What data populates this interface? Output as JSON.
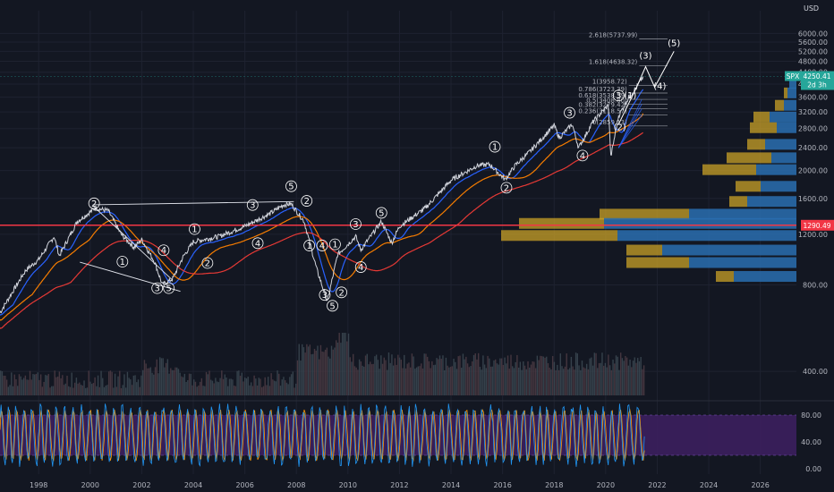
{
  "colors": {
    "background": "#131722",
    "price": "#d1d4dc",
    "ma_blue": "#2962ff",
    "ma_orange": "#f57c00",
    "ma_red": "#e53935",
    "support_line": "#f23645",
    "stoch_k": "#2196f3",
    "stoch_d": "#ff9800",
    "stoch_band": "#3c1f5e",
    "vp_up": "#2a6fb0",
    "vp_down": "#c9a227",
    "volume": "#5d4950",
    "wave_line": "#e0e3eb"
  },
  "header": {
    "currency": "USD"
  },
  "tags": {
    "symbol": "SPX",
    "last_price": "4250.41",
    "countdown": "2d 3h",
    "level_label": "1290.49"
  },
  "chart_data": {
    "type": "line",
    "title": "",
    "yscale": "log",
    "ylim": [
      330,
      7200
    ],
    "y_ticks": [
      "6000.00",
      "5600.00",
      "5200.00",
      "4800.00",
      "4400.00",
      "4000.00",
      "3600.00",
      "3200.00",
      "2800.00",
      "2400.00",
      "2000.00",
      "1600.00",
      "1200.00",
      "800.00",
      "400.00"
    ],
    "y_tick_values": [
      6000,
      5600,
      5200,
      4800,
      4400,
      4000,
      3600,
      3200,
      2800,
      2400,
      2000,
      1600,
      1200,
      800,
      400
    ],
    "x_ticks": [
      "1998",
      "2000",
      "2002",
      "2004",
      "2006",
      "2008",
      "2010",
      "2012",
      "2014",
      "2016",
      "2018",
      "2020",
      "2022",
      "2024",
      "2026"
    ],
    "x_tick_values": [
      1998,
      2000,
      2002,
      2004,
      2006,
      2008,
      2010,
      2012,
      2014,
      2016,
      2018,
      2020,
      2022,
      2024,
      2026
    ],
    "xlim": [
      1996.5,
      2027.4
    ],
    "series": [
      {
        "x": [
          1996.5,
          1997.0,
          1997.5,
          1998.0,
          1998.6,
          1998.8,
          1999.5,
          2000.2,
          2000.7,
          2001.2,
          2001.7,
          2002.0,
          2002.5,
          2002.8,
          2003.2,
          2003.6,
          2004.0,
          2005.0,
          2006.0,
          2007.0,
          2007.5,
          2007.8,
          2008.3,
          2008.8,
          2009.2,
          2009.6,
          2010.3,
          2010.5,
          2011.3,
          2011.7,
          2012.0,
          2013.0,
          2014.0,
          2015.0,
          2015.5,
          2016.1,
          2016.5,
          2017.0,
          2018.0,
          2018.2,
          2018.7,
          2018.95,
          2019.5,
          2020.1,
          2020.2,
          2020.5,
          2020.9,
          2021.2,
          2021.45
        ],
        "y": [
          640,
          760,
          900,
          980,
          1180,
          1010,
          1330,
          1480,
          1450,
          1200,
          1080,
          1150,
          960,
          800,
          840,
          1000,
          1130,
          1180,
          1280,
          1420,
          1520,
          1530,
          1330,
          900,
          700,
          1020,
          1180,
          1060,
          1330,
          1120,
          1280,
          1480,
          1850,
          2080,
          2100,
          1860,
          2090,
          2300,
          2870,
          2600,
          2900,
          2400,
          2950,
          3380,
          2230,
          3100,
          3600,
          3900,
          4250
        ]
      }
    ],
    "support_level": 1290.49,
    "fib_levels": [
      {
        "label": "2.618(5737.99)",
        "value": 5737.99
      },
      {
        "label": "1.618(4638.32)",
        "value": 4638.32
      },
      {
        "label": "1(3958.72)",
        "value": 3958.72
      },
      {
        "label": "0.786(3723.39)",
        "value": 3723.39
      },
      {
        "label": "0.618(3538.59)",
        "value": 3538.59
      },
      {
        "label": "0.5(3408.80)",
        "value": 3408.8
      },
      {
        "label": "0.382(3279.42)",
        "value": 3279.42
      },
      {
        "label": "0.236(3118.57)",
        "value": 3118.57
      },
      {
        "label": "0(2859.13)",
        "value": 2859.13
      }
    ],
    "wave_labels": [
      {
        "t": "2",
        "x": 2000.15,
        "y": 1500
      },
      {
        "t": "1",
        "x": 2001.25,
        "y": 940
      },
      {
        "t": "3",
        "x": 2002.6,
        "y": 760
      },
      {
        "t": "4",
        "x": 2002.85,
        "y": 1030
      },
      {
        "t": "5",
        "x": 2003.05,
        "y": 760
      },
      {
        "t": "1",
        "x": 2004.05,
        "y": 1220
      },
      {
        "t": "2",
        "x": 2004.55,
        "y": 930
      },
      {
        "t": "3",
        "x": 2006.3,
        "y": 1480
      },
      {
        "t": "4",
        "x": 2006.5,
        "y": 1090
      },
      {
        "t": "5",
        "x": 2007.8,
        "y": 1720
      },
      {
        "t": "2",
        "x": 2008.4,
        "y": 1530
      },
      {
        "t": "1",
        "x": 2008.5,
        "y": 1070
      },
      {
        "t": "4",
        "x": 2009.0,
        "y": 1070
      },
      {
        "t": "3",
        "x": 2009.1,
        "y": 720
      },
      {
        "t": "5",
        "x": 2009.4,
        "y": 660
      },
      {
        "t": "1",
        "x": 2009.5,
        "y": 1080
      },
      {
        "t": "2",
        "x": 2009.75,
        "y": 735
      },
      {
        "t": "3",
        "x": 2010.3,
        "y": 1270
      },
      {
        "t": "4",
        "x": 2010.5,
        "y": 900
      },
      {
        "t": "5",
        "x": 2011.3,
        "y": 1390
      },
      {
        "t": "1",
        "x": 2015.7,
        "y": 2360
      },
      {
        "t": "2",
        "x": 2016.15,
        "y": 1700
      },
      {
        "t": "3",
        "x": 2018.6,
        "y": 3100
      },
      {
        "t": "4",
        "x": 2019.1,
        "y": 2200
      },
      {
        "t": "3",
        "x": 2020.5,
        "y": 3560
      },
      {
        "t": "(1)",
        "x": 2020.95,
        "y": 3560
      },
      {
        "t": "(2)",
        "x": 2020.55,
        "y": 2760
      },
      {
        "t": "(3)",
        "x": 2021.55,
        "y": 4900
      },
      {
        "t": "(4)",
        "x": 2022.1,
        "y": 3850
      },
      {
        "t": "(5)",
        "x": 2022.65,
        "y": 5430
      }
    ],
    "projection": {
      "x": [
        2020.5,
        2021.2,
        2021.55,
        2021.9,
        2022.65
      ],
      "y": [
        2900,
        3900,
        4600,
        3900,
        5200
      ]
    },
    "oscillator": {
      "ticks": [
        "80.00",
        "40.00",
        "0.00"
      ],
      "tick_values": [
        80,
        40,
        0
      ],
      "upper_band": 80,
      "lower_band": 20
    },
    "volume_profile": [
      {
        "price": 4000,
        "up": 8,
        "down": 0
      },
      {
        "price": 3700,
        "up": 10,
        "down": 4
      },
      {
        "price": 3350,
        "up": 14,
        "down": 10
      },
      {
        "price": 3050,
        "up": 30,
        "down": 18
      },
      {
        "price": 2800,
        "up": 22,
        "down": 30
      },
      {
        "price": 2450,
        "up": 35,
        "down": 20
      },
      {
        "price": 2200,
        "up": 28,
        "down": 50
      },
      {
        "price": 2000,
        "up": 45,
        "down": 60
      },
      {
        "price": 1750,
        "up": 40,
        "down": 28
      },
      {
        "price": 1550,
        "up": 55,
        "down": 20
      },
      {
        "price": 1400,
        "up": 120,
        "down": 100
      },
      {
        "price": 1300,
        "up": 215,
        "down": 95
      },
      {
        "price": 1180,
        "up": 200,
        "down": 130
      },
      {
        "price": 1050,
        "up": 150,
        "down": 40
      },
      {
        "price": 950,
        "up": 120,
        "down": 70
      },
      {
        "price": 850,
        "up": 70,
        "down": 20
      }
    ]
  }
}
